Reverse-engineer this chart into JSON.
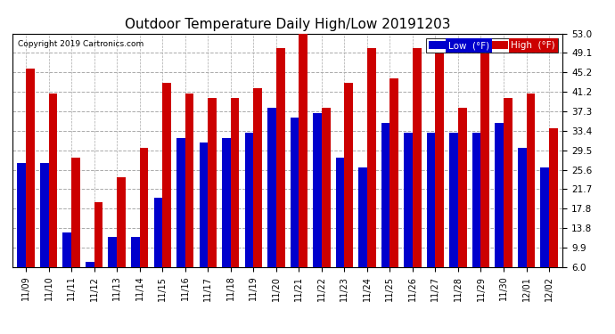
{
  "title": "Outdoor Temperature Daily High/Low 20191203",
  "copyright": "Copyright 2019 Cartronics.com",
  "categories": [
    "11/09",
    "11/10",
    "11/11",
    "11/12",
    "11/13",
    "11/14",
    "11/15",
    "11/16",
    "11/17",
    "11/18",
    "11/19",
    "11/20",
    "11/21",
    "11/22",
    "11/23",
    "11/24",
    "11/25",
    "11/26",
    "11/27",
    "11/28",
    "11/29",
    "11/30",
    "12/01",
    "12/02"
  ],
  "low_values": [
    27,
    27,
    13,
    7,
    12,
    12,
    20,
    32,
    31,
    32,
    33,
    38,
    36,
    37,
    28,
    26,
    35,
    33,
    33,
    33,
    33,
    35,
    30,
    26
  ],
  "high_values": [
    46,
    41,
    28,
    19,
    24,
    30,
    43,
    41,
    40,
    40,
    42,
    50,
    53,
    38,
    43,
    50,
    44,
    50,
    49,
    38,
    49,
    40,
    41,
    34
  ],
  "low_color": "#0000cc",
  "high_color": "#cc0000",
  "background_color": "#ffffff",
  "plot_bg_color": "#ffffff",
  "grid_color": "#aaaaaa",
  "yticks": [
    6.0,
    9.9,
    13.8,
    17.8,
    21.7,
    25.6,
    29.5,
    33.4,
    37.3,
    41.2,
    45.2,
    49.1,
    53.0
  ],
  "ymin": 6.0,
  "ymax": 53.0,
  "title_fontsize": 11,
  "legend_low_label": "Low  (°F)",
  "legend_high_label": "High  (°F)"
}
